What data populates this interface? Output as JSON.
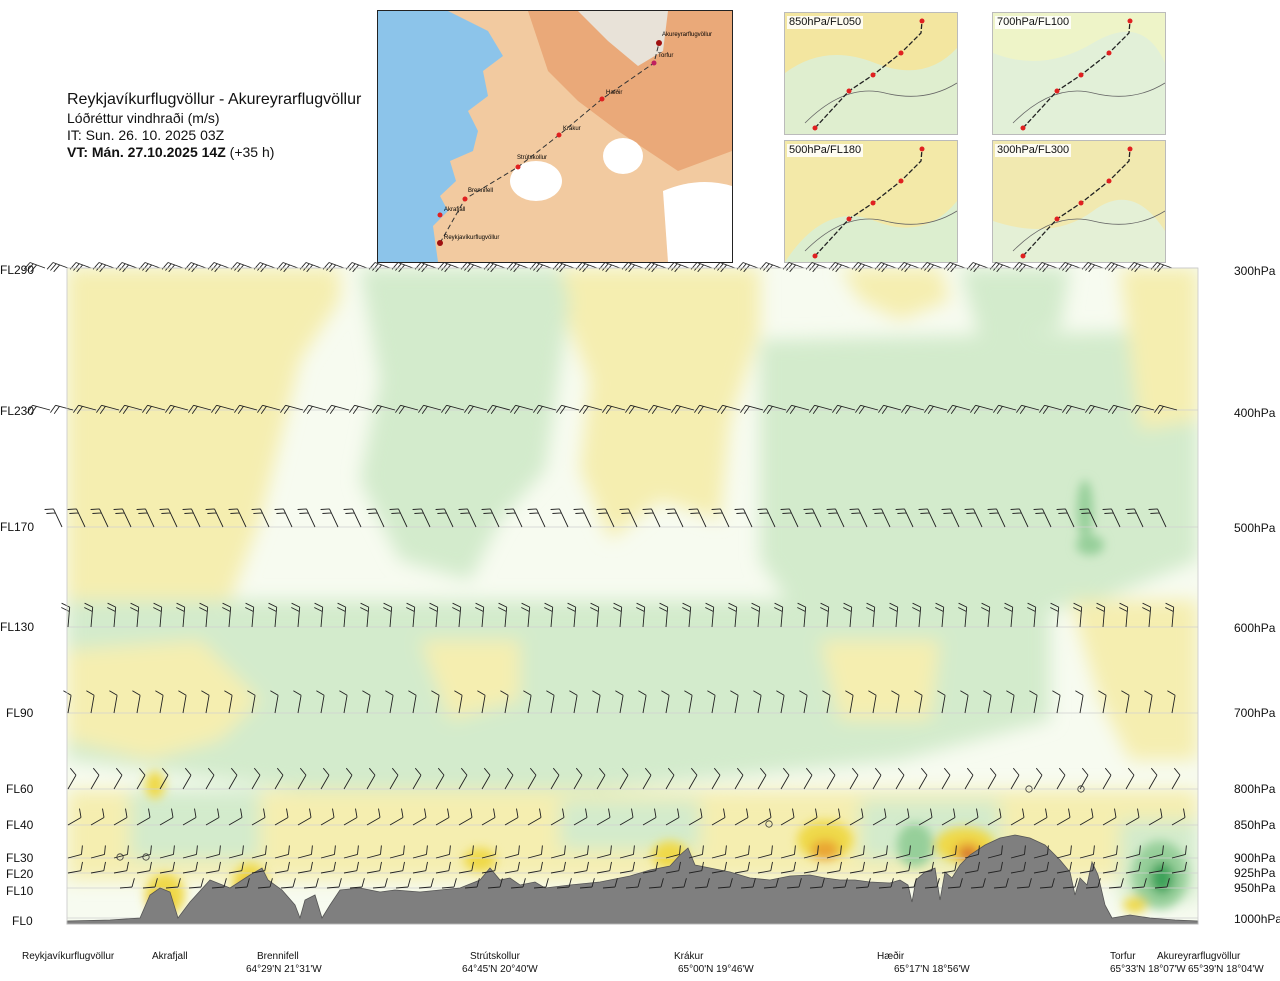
{
  "header": {
    "route": "Reykjavíkurflugvöllur - Akureyrarflugvöllur",
    "variable": "Lóðréttur vindhraði (m/s)",
    "issue_time": "IT: Sun. 26. 10. 2025 03Z",
    "valid_time_bold": "VT: Mán. 27.10.2025 14Z",
    "valid_time_lead": "(+35 h)"
  },
  "route_map": {
    "waypoints": [
      "Akureyrarflugvöllur",
      "Torfur",
      "Hæðir",
      "Krákur",
      "Strútskollur",
      "Brennifell",
      "Akrafjall",
      "Reykjavíkurflugvöllur"
    ]
  },
  "level_maps": [
    {
      "label": "850hPa/FL050"
    },
    {
      "label": "700hPa/FL100"
    },
    {
      "label": "500hPa/FL180"
    },
    {
      "label": "300hPa/FL300"
    }
  ],
  "chart_data": {
    "type": "heatmap",
    "title": "Lóðréttur vindhraði (m/s)",
    "y_left_ticks": [
      "FL290",
      "FL230",
      "FL170",
      "FL130",
      "FL90",
      "FL60",
      "FL40",
      "FL30",
      "FL20",
      "FL10",
      "FL0"
    ],
    "y_right_ticks": [
      "300hPa",
      "400hPa",
      "500hPa",
      "600hPa",
      "700hPa",
      "800hPa",
      "850hPa",
      "900hPa",
      "925hPa",
      "950hPa",
      "1000hPa"
    ],
    "x_locations": [
      {
        "name": "Reykjavíkurflugvöllur",
        "coord": ""
      },
      {
        "name": "Akrafjall",
        "coord": ""
      },
      {
        "name": "Brennifell",
        "coord": "64°29'N 21°31'W"
      },
      {
        "name": "Strútskollur",
        "coord": "64°45'N 20°40'W"
      },
      {
        "name": "Krákur",
        "coord": "65°00'N 19°46'W"
      },
      {
        "name": "Hæðir",
        "coord": "65°17'N 18°56'W"
      },
      {
        "name": "Torfur",
        "coord": "65°33'N 18°07'W"
      },
      {
        "name": "Akureyrarflugvöllur",
        "coord": "65°39'N 18°04'W"
      }
    ],
    "colors": {
      "descent_weak": "#f5eeb0",
      "descent_moderate": "#efd94a",
      "descent_strong": "#e9a431",
      "descent_extreme": "#c8442a",
      "near_zero": "#f7fbf0",
      "ascent_weak": "#d3ebcc",
      "ascent_moderate": "#96cf9a",
      "ascent_strong": "#3da35a",
      "terrain": "#7f7f7f"
    }
  }
}
